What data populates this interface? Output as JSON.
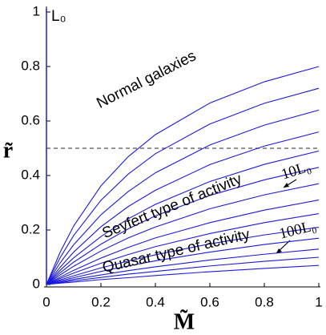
{
  "chart_data": {
    "type": "line",
    "x_label": "M̃",
    "y_label": "r̃",
    "x": [
      0,
      0.05,
      0.1,
      0.2,
      0.3,
      0.4,
      0.6,
      0.8,
      1
    ],
    "series": [
      {
        "color": "#1a1adc",
        "values": [
          0,
          0.118,
          0.215,
          0.362,
          0.469,
          0.55,
          0.666,
          0.744,
          0.8
        ]
      },
      {
        "color": "#1a1adc",
        "values": [
          0,
          0.098,
          0.18,
          0.309,
          0.405,
          0.48,
          0.589,
          0.665,
          0.72
        ]
      },
      {
        "color": "#1a1adc",
        "values": [
          0,
          0.079,
          0.146,
          0.256,
          0.341,
          0.41,
          0.512,
          0.585,
          0.64
        ]
      },
      {
        "color": "#1a1adc",
        "values": [
          0,
          0.063,
          0.119,
          0.212,
          0.286,
          0.346,
          0.44,
          0.508,
          0.56
        ]
      },
      {
        "color": "#1a1adc",
        "values": [
          0,
          0.052,
          0.098,
          0.176,
          0.241,
          0.294,
          0.378,
          0.441,
          0.49
        ]
      },
      {
        "color": "#1a1adc",
        "values": [
          0,
          0.043,
          0.082,
          0.148,
          0.204,
          0.252,
          0.327,
          0.384,
          0.43
        ]
      },
      {
        "color": "#1a1adc",
        "values": [
          0,
          0.035,
          0.067,
          0.123,
          0.171,
          0.211,
          0.278,
          0.329,
          0.37
        ]
      },
      {
        "color": "#1a1adc",
        "values": [
          0,
          0.027,
          0.052,
          0.097,
          0.136,
          0.171,
          0.227,
          0.273,
          0.31
        ]
      },
      {
        "color": "#1a1adc",
        "values": [
          0,
          0.022,
          0.042,
          0.078,
          0.11,
          0.139,
          0.187,
          0.227,
          0.26
        ]
      },
      {
        "color": "#1a1adc",
        "values": [
          0,
          0.017,
          0.032,
          0.061,
          0.086,
          0.109,
          0.149,
          0.182,
          0.21
        ]
      },
      {
        "color": "#1a1adc",
        "values": [
          0,
          0.013,
          0.025,
          0.048,
          0.068,
          0.087,
          0.119,
          0.147,
          0.17
        ]
      },
      {
        "color": "#1a1adc",
        "values": [
          0,
          0.009,
          0.019,
          0.035,
          0.051,
          0.065,
          0.09,
          0.111,
          0.13
        ]
      },
      {
        "color": "#1a1adc",
        "values": [
          0,
          0.007,
          0.014,
          0.026,
          0.038,
          0.048,
          0.068,
          0.085,
          0.1
        ]
      },
      {
        "color": "#1a1adc",
        "values": [
          0,
          0.005,
          0.009,
          0.018,
          0.025,
          0.033,
          0.047,
          0.059,
          0.07
        ]
      }
    ],
    "vertical_line": {
      "x": 0,
      "label": "L₀",
      "color": "#1a1adc"
    },
    "hline": {
      "y": 0.5,
      "color": "#555555"
    },
    "annotations": [
      "Normal galaxies",
      "Seyfert type of activity",
      "Quasar type of activity",
      "10L₀",
      "100L₀"
    ],
    "xlim": [
      0,
      1
    ],
    "ylim": [
      0,
      1
    ],
    "xticks": [
      0,
      0.2,
      0.4,
      0.6,
      0.8,
      1
    ],
    "yticks": [
      0,
      0.2,
      0.4,
      0.6,
      0.8,
      1
    ],
    "grid": false
  }
}
